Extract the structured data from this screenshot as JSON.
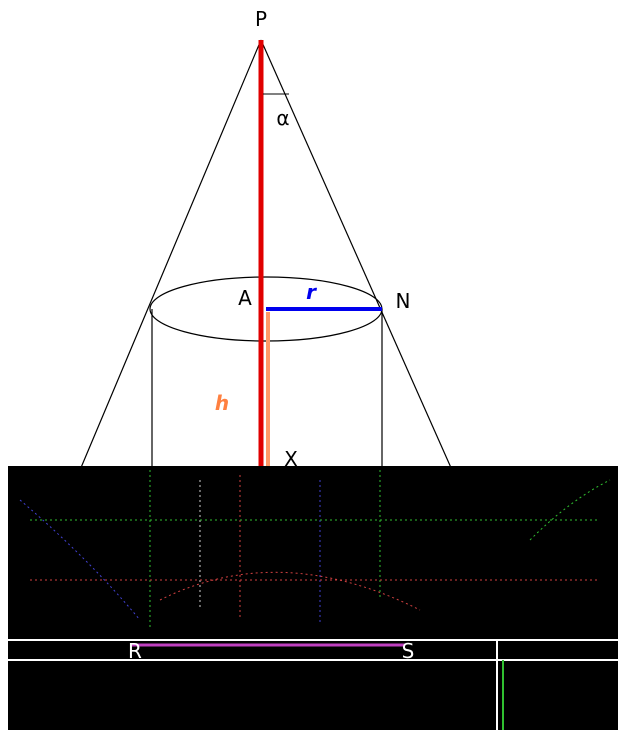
{
  "labels": {
    "apex": "P",
    "angle": "α",
    "center": "A",
    "radius": "r",
    "rim": "N",
    "height": "h",
    "base": "X",
    "bottom_left": "R",
    "bottom_right": "S"
  }
}
